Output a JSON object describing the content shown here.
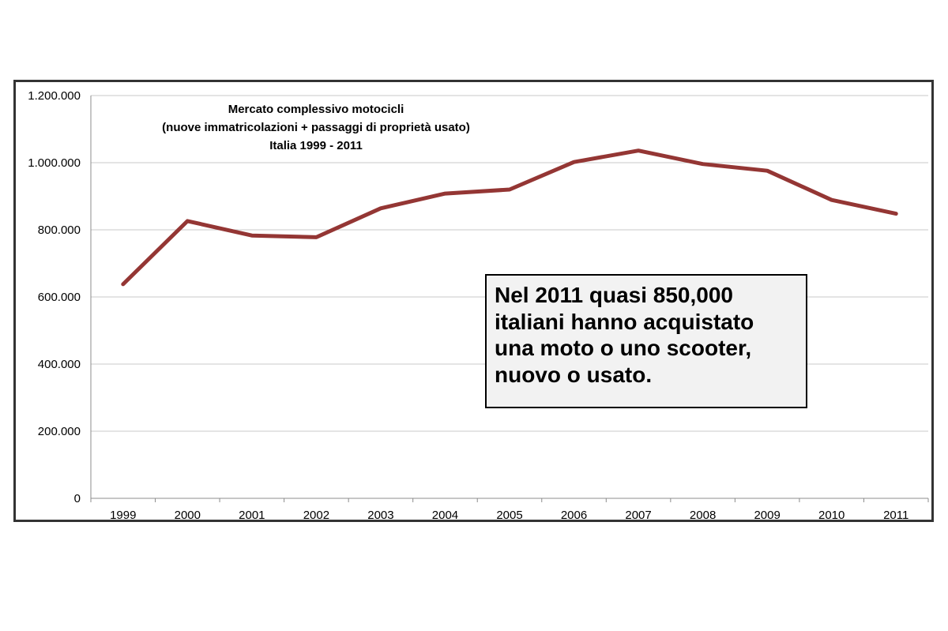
{
  "chart_data": {
    "type": "line",
    "title_lines": [
      "Mercato complessivo motocicli",
      "(nuove immatricolazioni + passaggi di proprietà usato)",
      "Italia 1999 - 2011"
    ],
    "categories": [
      "1999",
      "2000",
      "2001",
      "2002",
      "2003",
      "2004",
      "2005",
      "2006",
      "2007",
      "2008",
      "2009",
      "2010",
      "2011"
    ],
    "series": [
      {
        "values": [
          638000,
          826000,
          783000,
          778000,
          864000,
          908000,
          920000,
          1002000,
          1036000,
          996000,
          976000,
          889000,
          848000
        ]
      }
    ],
    "y_ticks": [
      "0",
      "200.000",
      "400.000",
      "600.000",
      "800.000",
      "1.000.000",
      "1.200.000"
    ],
    "ylim": [
      0,
      1200000
    ],
    "grid": true,
    "line_color": "#943634",
    "annotation_lines": [
      "Nel 2011 quasi 850,000",
      "italiani hanno acquistato",
      "una moto o uno scooter,",
      "nuovo o usato."
    ]
  }
}
